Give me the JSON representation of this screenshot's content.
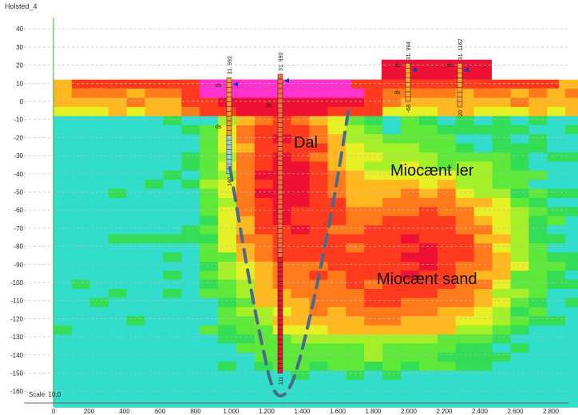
{
  "plot_title": "Holsted_4",
  "scale_label": "Scale: 10,0",
  "y_ticks": [
    "40",
    "30",
    "20",
    "10",
    "0",
    "-10",
    "-20",
    "-30",
    "-40",
    "-50",
    "-60",
    "-70",
    "-80",
    "-90",
    "-100",
    "-110",
    "-120",
    "-130",
    "-140",
    "-150",
    "-160"
  ],
  "x_ticks": [
    "0",
    "200",
    "400",
    "600",
    "800",
    "1.000",
    "1.200",
    "1.400",
    "1.600",
    "1.800",
    "2.000",
    "2.200",
    "2.400",
    "2.600",
    "2.800"
  ],
  "annotations": {
    "dal": "Dal",
    "miocaen_ler": "Miocænt ler",
    "miocaen_sand": "Miocænt sand"
  },
  "boreholes": [
    {
      "id": "31. 992",
      "bottom_label": "140"
    },
    {
      "id": "31. 990",
      "bottom_label": "111"
    },
    {
      "id": "31. 994",
      "bottom_label": "-68"
    },
    {
      "id": "31. 1162",
      "bottom_label": "-20"
    }
  ],
  "marker_labels": [
    "ds",
    "ds",
    "ds",
    "ds",
    "ds",
    "ds"
  ],
  "colors": {
    "valley_outline": "#4a6a8a",
    "grid": "#bbbbbb",
    "magenta": "#ff33cc",
    "deep_red": "#ee1133",
    "orange": "#ff7a1a",
    "yellow": "#e7f025",
    "green": "#33dd55",
    "cyan": "#33ddcc"
  }
}
